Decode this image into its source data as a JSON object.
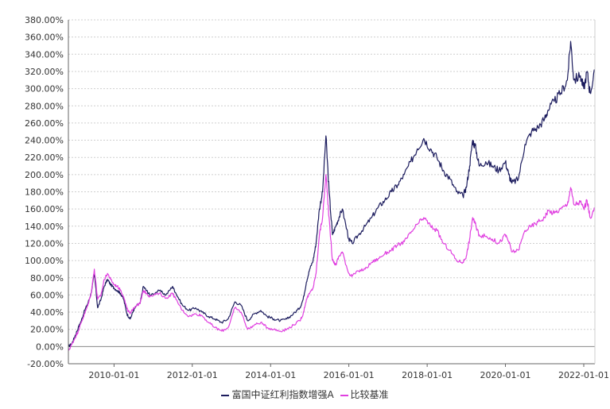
{
  "chart_data": {
    "type": "line",
    "title": "",
    "xlabel": "",
    "ylabel": "",
    "ylim": [
      -20,
      380
    ],
    "y_ticks": [
      -20,
      0,
      20,
      40,
      60,
      80,
      100,
      120,
      140,
      160,
      180,
      200,
      220,
      240,
      260,
      280,
      300,
      320,
      340,
      360,
      380
    ],
    "y_tick_labels": [
      "-20.00%",
      "0.00%",
      "20.00%",
      "40.00%",
      "60.00%",
      "80.00%",
      "100.00%",
      "120.00%",
      "140.00%",
      "160.00%",
      "180.00%",
      "200.00%",
      "220.00%",
      "240.00%",
      "260.00%",
      "280.00%",
      "300.00%",
      "320.00%",
      "340.00%",
      "360.00%",
      "380.00%"
    ],
    "x_range": [
      "2008-11-01",
      "2022-04-15"
    ],
    "x_ticks": [
      "2010-01-01",
      "2012-01-01",
      "2014-01-01",
      "2016-01-01",
      "2018-01-01",
      "2020-01-01",
      "2022-01-01"
    ],
    "grid": true,
    "legend_position": "bottom",
    "series": [
      {
        "name": "富国中证红利指数增强A",
        "color": "#1c1c5e",
        "points": [
          [
            "2008-11-01",
            0
          ],
          [
            "2008-12-01",
            3
          ],
          [
            "2009-01-01",
            12
          ],
          [
            "2009-02-01",
            22
          ],
          [
            "2009-03-01",
            30
          ],
          [
            "2009-04-01",
            42
          ],
          [
            "2009-05-01",
            50
          ],
          [
            "2009-06-01",
            62
          ],
          [
            "2009-07-01",
            85
          ],
          [
            "2009-08-01",
            45
          ],
          [
            "2009-09-01",
            55
          ],
          [
            "2009-10-01",
            70
          ],
          [
            "2009-11-01",
            78
          ],
          [
            "2009-12-01",
            72
          ],
          [
            "2010-01-01",
            68
          ],
          [
            "2010-02-01",
            65
          ],
          [
            "2010-03-01",
            62
          ],
          [
            "2010-04-01",
            55
          ],
          [
            "2010-05-01",
            38
          ],
          [
            "2010-06-01",
            32
          ],
          [
            "2010-07-01",
            42
          ],
          [
            "2010-08-01",
            48
          ],
          [
            "2010-09-01",
            50
          ],
          [
            "2010-10-01",
            70
          ],
          [
            "2010-11-01",
            65
          ],
          [
            "2010-12-01",
            60
          ],
          [
            "2011-03-01",
            65
          ],
          [
            "2011-05-01",
            60
          ],
          [
            "2011-07-01",
            70
          ],
          [
            "2011-08-01",
            62
          ],
          [
            "2011-10-01",
            48
          ],
          [
            "2011-12-01",
            42
          ],
          [
            "2012-02-01",
            45
          ],
          [
            "2012-04-01",
            40
          ],
          [
            "2012-06-01",
            35
          ],
          [
            "2012-08-01",
            32
          ],
          [
            "2012-10-01",
            28
          ],
          [
            "2012-12-01",
            32
          ],
          [
            "2013-02-01",
            52
          ],
          [
            "2013-04-01",
            48
          ],
          [
            "2013-06-01",
            30
          ],
          [
            "2013-08-01",
            38
          ],
          [
            "2013-10-01",
            42
          ],
          [
            "2013-12-01",
            35
          ],
          [
            "2014-02-01",
            32
          ],
          [
            "2014-04-01",
            30
          ],
          [
            "2014-06-01",
            32
          ],
          [
            "2014-08-01",
            38
          ],
          [
            "2014-10-01",
            45
          ],
          [
            "2014-11-01",
            55
          ],
          [
            "2014-12-01",
            75
          ],
          [
            "2015-01-01",
            90
          ],
          [
            "2015-02-01",
            100
          ],
          [
            "2015-03-01",
            120
          ],
          [
            "2015-04-01",
            160
          ],
          [
            "2015-05-01",
            180
          ],
          [
            "2015-06-01",
            245
          ],
          [
            "2015-07-01",
            180
          ],
          [
            "2015-08-01",
            130
          ],
          [
            "2015-09-01",
            140
          ],
          [
            "2015-10-01",
            150
          ],
          [
            "2015-11-01",
            160
          ],
          [
            "2016-01-01",
            125
          ],
          [
            "2016-02-01",
            120
          ],
          [
            "2016-04-01",
            130
          ],
          [
            "2016-06-01",
            140
          ],
          [
            "2016-08-01",
            150
          ],
          [
            "2016-10-01",
            162
          ],
          [
            "2016-12-01",
            170
          ],
          [
            "2017-02-01",
            180
          ],
          [
            "2017-04-01",
            188
          ],
          [
            "2017-06-01",
            200
          ],
          [
            "2017-08-01",
            215
          ],
          [
            "2017-10-01",
            230
          ],
          [
            "2017-12-01",
            242
          ],
          [
            "2018-02-01",
            230
          ],
          [
            "2018-04-01",
            220
          ],
          [
            "2018-06-01",
            205
          ],
          [
            "2018-08-01",
            195
          ],
          [
            "2018-10-01",
            180
          ],
          [
            "2018-12-01",
            175
          ],
          [
            "2019-01-01",
            185
          ],
          [
            "2019-02-01",
            210
          ],
          [
            "2019-03-01",
            240
          ],
          [
            "2019-04-01",
            230
          ],
          [
            "2019-05-01",
            210
          ],
          [
            "2019-07-01",
            215
          ],
          [
            "2019-09-01",
            210
          ],
          [
            "2019-11-01",
            205
          ],
          [
            "2020-01-01",
            215
          ],
          [
            "2020-02-01",
            200
          ],
          [
            "2020-03-01",
            190
          ],
          [
            "2020-05-01",
            195
          ],
          [
            "2020-07-01",
            235
          ],
          [
            "2020-09-01",
            250
          ],
          [
            "2020-11-01",
            255
          ],
          [
            "2021-01-01",
            265
          ],
          [
            "2021-02-01",
            275
          ],
          [
            "2021-04-01",
            285
          ],
          [
            "2021-06-01",
            295
          ],
          [
            "2021-08-01",
            310
          ],
          [
            "2021-09-01",
            355
          ],
          [
            "2021-10-01",
            310
          ],
          [
            "2021-12-01",
            315
          ],
          [
            "2022-01-01",
            300
          ],
          [
            "2022-02-01",
            320
          ],
          [
            "2022-03-01",
            295
          ],
          [
            "2022-04-15",
            320
          ]
        ]
      },
      {
        "name": "比较基准",
        "color": "#e040e0",
        "points": [
          [
            "2008-11-01",
            -5
          ],
          [
            "2008-12-01",
            2
          ],
          [
            "2009-01-01",
            10
          ],
          [
            "2009-02-01",
            18
          ],
          [
            "2009-03-01",
            28
          ],
          [
            "2009-04-01",
            38
          ],
          [
            "2009-05-01",
            48
          ],
          [
            "2009-06-01",
            62
          ],
          [
            "2009-07-01",
            90
          ],
          [
            "2009-08-01",
            55
          ],
          [
            "2009-09-01",
            60
          ],
          [
            "2009-10-01",
            78
          ],
          [
            "2009-11-01",
            85
          ],
          [
            "2009-12-01",
            78
          ],
          [
            "2010-01-01",
            72
          ],
          [
            "2010-02-01",
            70
          ],
          [
            "2010-03-01",
            66
          ],
          [
            "2010-04-01",
            58
          ],
          [
            "2010-05-01",
            44
          ],
          [
            "2010-06-01",
            38
          ],
          [
            "2010-07-01",
            45
          ],
          [
            "2010-08-01",
            48
          ],
          [
            "2010-09-01",
            50
          ],
          [
            "2010-10-01",
            65
          ],
          [
            "2010-11-01",
            62
          ],
          [
            "2010-12-01",
            58
          ],
          [
            "2011-03-01",
            62
          ],
          [
            "2011-05-01",
            56
          ],
          [
            "2011-07-01",
            62
          ],
          [
            "2011-08-01",
            55
          ],
          [
            "2011-10-01",
            42
          ],
          [
            "2011-12-01",
            35
          ],
          [
            "2012-02-01",
            38
          ],
          [
            "2012-04-01",
            36
          ],
          [
            "2012-06-01",
            28
          ],
          [
            "2012-08-01",
            22
          ],
          [
            "2012-10-01",
            18
          ],
          [
            "2012-12-01",
            22
          ],
          [
            "2013-02-01",
            45
          ],
          [
            "2013-04-01",
            40
          ],
          [
            "2013-06-01",
            20
          ],
          [
            "2013-08-01",
            25
          ],
          [
            "2013-10-01",
            28
          ],
          [
            "2013-12-01",
            22
          ],
          [
            "2014-02-01",
            20
          ],
          [
            "2014-04-01",
            18
          ],
          [
            "2014-06-01",
            20
          ],
          [
            "2014-08-01",
            25
          ],
          [
            "2014-10-01",
            30
          ],
          [
            "2014-11-01",
            38
          ],
          [
            "2014-12-01",
            55
          ],
          [
            "2015-01-01",
            62
          ],
          [
            "2015-02-01",
            68
          ],
          [
            "2015-03-01",
            85
          ],
          [
            "2015-04-01",
            130
          ],
          [
            "2015-05-01",
            150
          ],
          [
            "2015-06-01",
            200
          ],
          [
            "2015-07-01",
            150
          ],
          [
            "2015-08-01",
            100
          ],
          [
            "2015-09-01",
            95
          ],
          [
            "2015-10-01",
            105
          ],
          [
            "2015-11-01",
            110
          ],
          [
            "2016-01-01",
            85
          ],
          [
            "2016-02-01",
            82
          ],
          [
            "2016-04-01",
            88
          ],
          [
            "2016-06-01",
            90
          ],
          [
            "2016-08-01",
            98
          ],
          [
            "2016-10-01",
            102
          ],
          [
            "2016-12-01",
            108
          ],
          [
            "2017-02-01",
            112
          ],
          [
            "2017-04-01",
            118
          ],
          [
            "2017-06-01",
            122
          ],
          [
            "2017-08-01",
            132
          ],
          [
            "2017-10-01",
            142
          ],
          [
            "2017-12-01",
            150
          ],
          [
            "2018-02-01",
            140
          ],
          [
            "2018-04-01",
            135
          ],
          [
            "2018-06-01",
            120
          ],
          [
            "2018-08-01",
            112
          ],
          [
            "2018-10-01",
            100
          ],
          [
            "2018-12-01",
            98
          ],
          [
            "2019-01-01",
            105
          ],
          [
            "2019-02-01",
            125
          ],
          [
            "2019-03-01",
            150
          ],
          [
            "2019-04-01",
            140
          ],
          [
            "2019-05-01",
            130
          ],
          [
            "2019-07-01",
            128
          ],
          [
            "2019-09-01",
            125
          ],
          [
            "2019-11-01",
            120
          ],
          [
            "2020-01-01",
            130
          ],
          [
            "2020-02-01",
            122
          ],
          [
            "2020-03-01",
            110
          ],
          [
            "2020-05-01",
            112
          ],
          [
            "2020-07-01",
            135
          ],
          [
            "2020-09-01",
            140
          ],
          [
            "2020-11-01",
            145
          ],
          [
            "2021-01-01",
            150
          ],
          [
            "2021-02-01",
            158
          ],
          [
            "2021-04-01",
            155
          ],
          [
            "2021-06-01",
            160
          ],
          [
            "2021-08-01",
            165
          ],
          [
            "2021-09-01",
            185
          ],
          [
            "2021-10-01",
            165
          ],
          [
            "2021-12-01",
            168
          ],
          [
            "2022-01-01",
            160
          ],
          [
            "2022-02-01",
            170
          ],
          [
            "2022-03-01",
            150
          ],
          [
            "2022-04-15",
            160
          ]
        ]
      }
    ]
  }
}
